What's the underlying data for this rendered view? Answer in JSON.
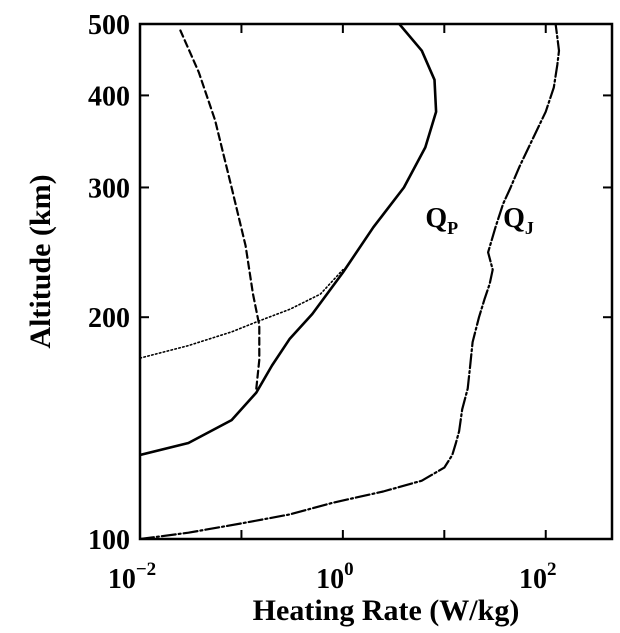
{
  "chart_data": {
    "type": "line",
    "xlabel": "Heating Rate (W/kg)",
    "ylabel": "Altitude (km)",
    "x_scale": "log",
    "y_scale": "log",
    "xlim": [
      0.01,
      450
    ],
    "ylim": [
      100,
      500
    ],
    "grid": false,
    "x_ticks": [
      {
        "value": 0.01,
        "base": "10",
        "exp": "−2"
      },
      {
        "value": 1,
        "base": "10",
        "exp": "0"
      },
      {
        "value": 100,
        "base": "10",
        "exp": "2"
      }
    ],
    "x_minor_ticks": [
      0.1,
      10
    ],
    "y_ticks": [
      {
        "value": 100,
        "label": "100"
      },
      {
        "value": 200,
        "label": "200"
      },
      {
        "value": 300,
        "label": "300"
      },
      {
        "value": 400,
        "label": "400"
      },
      {
        "value": 500,
        "label": "500"
      }
    ],
    "series": [
      {
        "name": "",
        "style": "solid",
        "x": [
          0.01,
          0.03,
          0.08,
          0.14,
          0.2,
          0.3,
          0.5,
          1.0,
          2.0,
          4.0,
          6.5,
          8.3,
          8.0,
          6.0,
          3.6
        ],
        "y": [
          130,
          135,
          145,
          158,
          172,
          187,
          202,
          230,
          265,
          300,
          340,
          380,
          420,
          460,
          500
        ]
      },
      {
        "name": "",
        "style": "dotted",
        "x": [
          0.01,
          0.03,
          0.08,
          0.14,
          0.3,
          0.6,
          1.0
        ],
        "y": [
          176,
          183,
          191,
          197,
          205,
          215,
          232
        ]
      },
      {
        "name": "",
        "style": "dashed",
        "x": [
          0.14,
          0.15,
          0.15,
          0.13,
          0.11,
          0.08,
          0.055,
          0.038,
          0.025
        ],
        "y": [
          160,
          175,
          195,
          215,
          250,
          300,
          370,
          430,
          490
        ]
      },
      {
        "name": "",
        "style": "dash-dot",
        "x": [
          0.01,
          0.03,
          0.1,
          0.3,
          0.8,
          2.5,
          6,
          10,
          12,
          13,
          14,
          15,
          17,
          18,
          19,
          22,
          25,
          28,
          30,
          27,
          32,
          38,
          45,
          55,
          75,
          100,
          120,
          130,
          135,
          130,
          125
        ],
        "y": [
          100,
          102,
          105,
          108,
          112,
          116,
          120,
          125,
          130,
          135,
          140,
          150,
          160,
          172,
          185,
          200,
          212,
          222,
          232,
          245,
          265,
          285,
          300,
          320,
          350,
          380,
          410,
          440,
          460,
          480,
          500
        ]
      }
    ],
    "annotations": [
      {
        "base": "Q",
        "sub": "P",
        "x": 6.5,
        "y": 265
      },
      {
        "base": "Q",
        "sub": "J",
        "x": 38,
        "y": 265
      }
    ]
  }
}
